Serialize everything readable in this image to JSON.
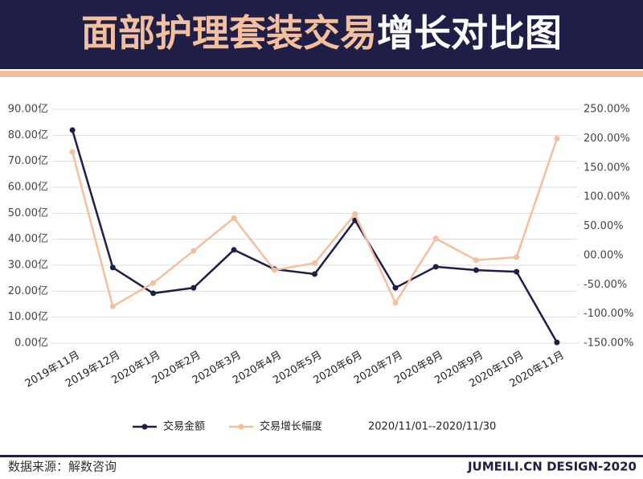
{
  "header": {
    "title_highlight": "面部护理套装交易",
    "title_rest": "增长对比图"
  },
  "chart_data": {
    "type": "line",
    "categories": [
      "2019年11月",
      "2019年12月",
      "2020年1月",
      "2020年2月",
      "2020年3月",
      "2020年4月",
      "2020年5月",
      "2020年6月",
      "2020年7月",
      "2020年8月",
      "2020年9月",
      "2020年10月",
      "2020年11月"
    ],
    "series": [
      {
        "name": "交易金额",
        "color": "#1e1e46",
        "values": [
          82.0,
          29.1,
          19.2,
          21.3,
          35.9,
          28.5,
          26.6,
          47.3,
          21.3,
          29.4,
          28.1,
          27.5,
          0.3
        ]
      },
      {
        "name": "交易增长幅度",
        "color": "#f4bf9c",
        "axis": "y2",
        "values": [
          177,
          -87,
          -47,
          8,
          64,
          -25,
          -13,
          71,
          -81,
          29,
          -8,
          -3,
          200
        ]
      }
    ],
    "ylim": [
      0,
      90
    ],
    "yticks": [
      {
        "value": 0,
        "label": "0.00亿"
      },
      {
        "value": 10,
        "label": "10.00亿"
      },
      {
        "value": 20,
        "label": "20.00亿"
      },
      {
        "value": 30,
        "label": "30.00亿"
      },
      {
        "value": 40,
        "label": "40.00亿"
      },
      {
        "value": 50,
        "label": "50.00亿"
      },
      {
        "value": 60,
        "label": "60.00亿"
      },
      {
        "value": 70,
        "label": "70.00亿"
      },
      {
        "value": 80,
        "label": "80.00亿"
      },
      {
        "value": 90,
        "label": "90.00亿"
      }
    ],
    "y2lim": [
      -150,
      250
    ],
    "y2ticks": [
      {
        "value": -150,
        "label": "-150.00%"
      },
      {
        "value": -100,
        "label": "-100.00%"
      },
      {
        "value": -50,
        "label": "-50.00%"
      },
      {
        "value": 0,
        "label": "00.00%"
      },
      {
        "value": 50,
        "label": "50.00%"
      },
      {
        "value": 100,
        "label": "100.00%"
      },
      {
        "value": 150,
        "label": "150.00%"
      },
      {
        "value": 200,
        "label": "200.00%"
      },
      {
        "value": 250,
        "label": "250.00%"
      }
    ],
    "grid": true,
    "date_range": "2020/11/01--2020/11/30"
  },
  "footer": {
    "source": "数据来源：解数咨询",
    "brand": "JUMEILI.CN DESIGN-2020"
  }
}
